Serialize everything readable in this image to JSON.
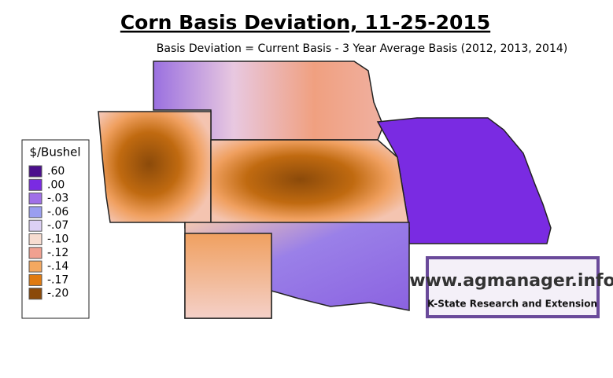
{
  "title": "Corn Basis Deviation, 11-25-2015",
  "subtitle": "Basis Deviation = Current Basis - 3 Year Average Basis (2012, 2013, 2014)",
  "legend": {
    "title": "$/Bushel",
    "items": [
      {
        "label": ".60",
        "color": "#4b0f8c"
      },
      {
        "label": ".00",
        "color": "#7a2be2"
      },
      {
        "label": "-.03",
        "color": "#a070e8"
      },
      {
        "label": "-.06",
        "color": "#9a9ef0"
      },
      {
        "label": "-.07",
        "color": "#dcd0f4"
      },
      {
        "label": "-.10",
        "color": "#f7dcd0"
      },
      {
        "label": "-.12",
        "color": "#f0a090"
      },
      {
        "label": "-.14",
        "color": "#f4a860"
      },
      {
        "label": "-.17",
        "color": "#e07a10"
      },
      {
        "label": "-.20",
        "color": "#8b4a0a"
      }
    ]
  },
  "logo": {
    "url": "www.agmanager.info",
    "org": "K-State Research and Extension"
  }
}
